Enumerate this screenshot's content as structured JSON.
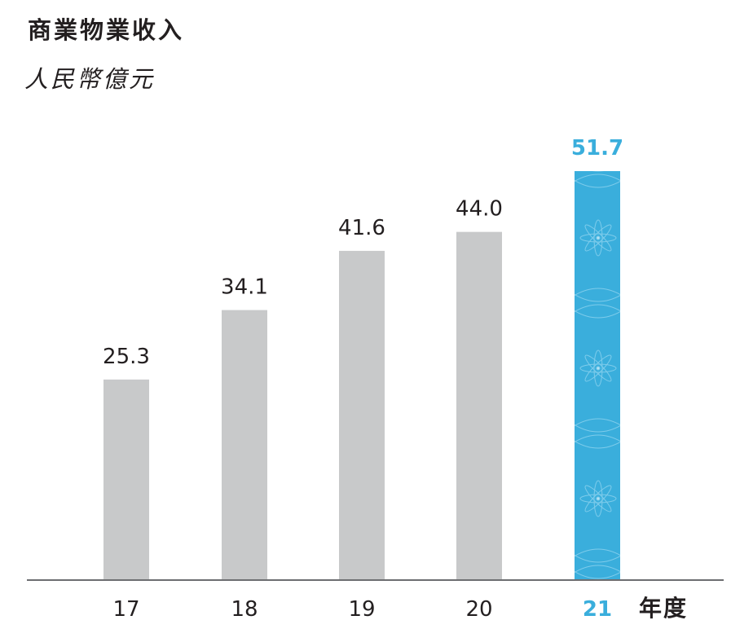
{
  "header": {
    "title": "商業物業收入",
    "subtitle": "人民幣億元"
  },
  "chart_data": {
    "type": "bar",
    "categories": [
      "17",
      "18",
      "19",
      "20",
      "21"
    ],
    "values": [
      25.3,
      34.1,
      41.6,
      44.0,
      51.7
    ],
    "value_labels": [
      "25.3",
      "34.1",
      "41.6",
      "44.0",
      "51.7"
    ],
    "title": "商業物業收入",
    "ylabel": "人民幣億元",
    "xlabel": "年度",
    "ylim": [
      0,
      51.7
    ],
    "highlight_index": 4,
    "grid": false,
    "colors": {
      "bar": "#c8c9ca",
      "highlight": "#3aaedc",
      "axis": "#6d6e71",
      "text": "#231f20"
    }
  }
}
